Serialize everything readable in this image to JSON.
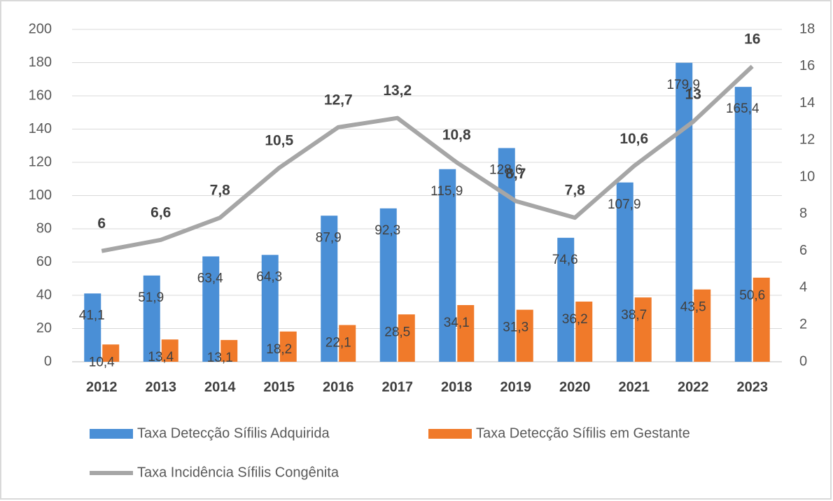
{
  "chart_data": {
    "type": "bar",
    "categories": [
      "2012",
      "2013",
      "2014",
      "2015",
      "2016",
      "2017",
      "2018",
      "2019",
      "2020",
      "2021",
      "2022",
      "2023"
    ],
    "series": [
      {
        "name": "Taxa Detecção Sífilis Adquirida",
        "color": "#4a8fd6",
        "type": "bar",
        "values": [
          41.1,
          51.9,
          63.4,
          64.3,
          87.9,
          92.3,
          115.9,
          128.6,
          74.6,
          107.9,
          179.9,
          165.4
        ],
        "value_labels": [
          "41,1",
          "51,9",
          "63,4",
          "64,3",
          "87,9",
          "92,3",
          "115,9",
          "128,6",
          "74,6",
          "107,9",
          "179,9",
          "165,4"
        ]
      },
      {
        "name": "Taxa Detecção Sífilis em Gestante",
        "color": "#f07a2a",
        "type": "bar",
        "values": [
          10.4,
          13.4,
          13.1,
          18.2,
          22.1,
          28.5,
          34.1,
          31.3,
          36.2,
          38.7,
          43.5,
          50.6
        ],
        "value_labels": [
          "10,4",
          "13,4",
          "13,1",
          "18,2",
          "22,1",
          "28,5",
          "34,1",
          "31,3",
          "36,2",
          "38,7",
          "43,5",
          "50,6"
        ]
      },
      {
        "name": "Taxa Incidência Sífilis Congênita",
        "color": "#a6a6a6",
        "type": "line",
        "axis": "y2",
        "values": [
          6,
          6.6,
          7.8,
          10.5,
          12.7,
          13.2,
          10.8,
          8.7,
          7.8,
          10.6,
          13,
          16
        ],
        "value_labels": [
          "6",
          "6,6",
          "7,8",
          "10,5",
          "12,7",
          "13,2",
          "10,8",
          "8,7",
          "7,8",
          "10,6",
          "13",
          "16"
        ]
      }
    ],
    "ylim": [
      0,
      200
    ],
    "yticks": [
      0,
      20,
      40,
      60,
      80,
      100,
      120,
      140,
      160,
      180,
      200
    ],
    "y2lim": [
      0,
      18
    ],
    "y2ticks": [
      0,
      2,
      4,
      6,
      8,
      10,
      12,
      14,
      16,
      18
    ],
    "grid": true
  }
}
